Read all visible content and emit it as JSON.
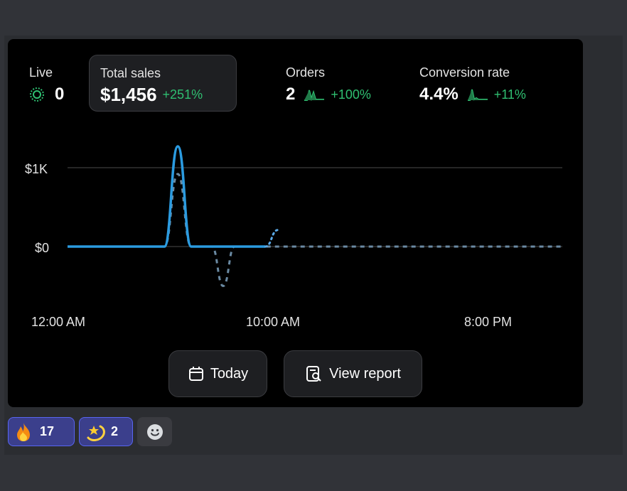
{
  "metrics": {
    "live": {
      "label": "Live",
      "value": "0"
    },
    "total_sales": {
      "label": "Total sales",
      "value": "$1,456",
      "change": "+251%"
    },
    "orders": {
      "label": "Orders",
      "value": "2",
      "change": "+100%"
    },
    "conversion": {
      "label": "Conversion rate",
      "value": "4.4%",
      "change": "+11%"
    }
  },
  "colors": {
    "positive": "#2fbf71",
    "line": "#2b9be0",
    "comparison": "#6a8aa3",
    "forecast": "#5aa9e6"
  },
  "chart_data": {
    "type": "line",
    "y_ticks": [
      "$1K",
      "$0"
    ],
    "x_ticks": [
      "12:00 AM",
      "10:00 AM",
      "8:00 PM"
    ],
    "ylim": [
      -550,
      1400
    ],
    "series": [
      {
        "style": "solid",
        "x": [
          0,
          4.7,
          5.35,
          6.0,
          7.0,
          8.0,
          9.6
        ],
        "y": [
          0,
          0,
          1270,
          0,
          0,
          0,
          0
        ]
      },
      {
        "style": "dashed",
        "x": [
          0,
          4.7,
          5.35,
          6.0,
          7.0,
          7.55,
          8.1,
          9.6,
          24.0
        ],
        "y": [
          0,
          0,
          920,
          0,
          0,
          -500,
          0,
          0,
          0
        ]
      },
      {
        "style": "dotted",
        "x": [
          9.6,
          10.2
        ],
        "y": [
          0,
          210
        ]
      }
    ],
    "grid": true,
    "legend": "none"
  },
  "buttons": {
    "today": "Today",
    "view_report": "View report"
  },
  "reactions": [
    {
      "emoji": "fire",
      "count": "17"
    },
    {
      "emoji": "dizzy-star",
      "count": "2"
    }
  ]
}
